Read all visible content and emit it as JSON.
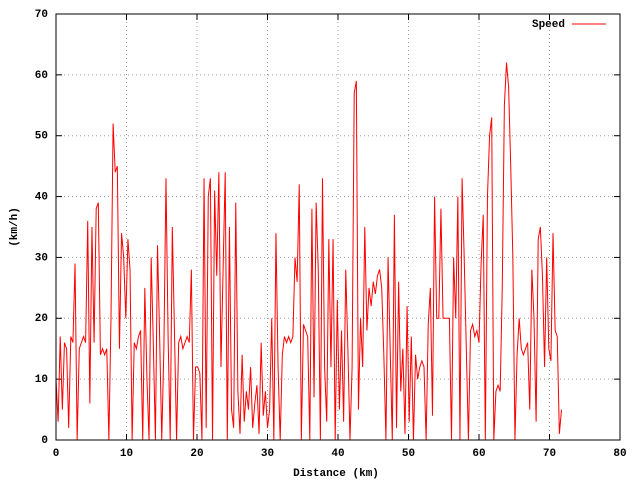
{
  "chart_data": {
    "type": "line",
    "xlabel": "Distance (km)",
    "ylabel": "(km/h)",
    "xlim": [
      0,
      80
    ],
    "ylim": [
      0,
      70
    ],
    "xticks": [
      0,
      10,
      20,
      30,
      40,
      50,
      60,
      70,
      80
    ],
    "yticks": [
      0,
      10,
      20,
      30,
      40,
      50,
      60,
      70
    ],
    "grid": true,
    "legend": "upper right",
    "x": [
      0,
      0.3,
      0.6,
      0.9,
      1.2,
      1.5,
      1.8,
      2.1,
      2.4,
      2.7,
      3,
      3.3,
      3.6,
      3.9,
      4.2,
      4.5,
      4.8,
      5.1,
      5.4,
      5.7,
      6,
      6.3,
      6.6,
      6.9,
      7.2,
      7.5,
      7.8,
      8.1,
      8.4,
      8.7,
      9,
      9.3,
      9.6,
      9.9,
      10.2,
      10.5,
      10.8,
      11.1,
      11.4,
      11.7,
      12,
      12.3,
      12.6,
      12.9,
      13.2,
      13.5,
      13.8,
      14.1,
      14.4,
      14.7,
      15,
      15.3,
      15.6,
      15.9,
      16.2,
      16.5,
      16.8,
      17.1,
      17.4,
      17.7,
      18,
      18.3,
      18.6,
      18.9,
      19.2,
      19.5,
      19.8,
      20.1,
      20.4,
      20.7,
      21,
      21.3,
      21.6,
      21.9,
      22.2,
      22.5,
      22.8,
      23.1,
      23.4,
      23.7,
      24,
      24.3,
      24.6,
      24.9,
      25.2,
      25.5,
      25.8,
      26.1,
      26.4,
      26.7,
      27,
      27.3,
      27.6,
      27.9,
      28.2,
      28.5,
      28.8,
      29.1,
      29.4,
      29.7,
      30,
      30.3,
      30.6,
      30.9,
      31.2,
      31.5,
      31.8,
      32.1,
      32.4,
      32.7,
      33,
      33.3,
      33.6,
      33.9,
      34.2,
      34.5,
      34.8,
      35.1,
      35.4,
      35.7,
      36,
      36.3,
      36.6,
      36.9,
      37.2,
      37.5,
      37.8,
      38.1,
      38.4,
      38.7,
      39,
      39.3,
      39.6,
      39.9,
      40.2,
      40.5,
      40.8,
      41.1,
      41.4,
      41.7,
      42,
      42.3,
      42.6,
      42.9,
      43.2,
      43.5,
      43.8,
      44.1,
      44.4,
      44.7,
      45,
      45.3,
      45.6,
      45.9,
      46.2,
      46.5,
      46.8,
      47.1,
      47.4,
      47.7,
      48,
      48.3,
      48.6,
      48.9,
      49.2,
      49.5,
      49.8,
      50.1,
      50.4,
      50.7,
      51,
      51.3,
      51.6,
      51.9,
      52.2,
      52.5,
      52.8,
      53.1,
      53.4,
      53.7,
      54,
      54.3,
      54.6,
      54.9,
      55.2,
      55.5,
      55.8,
      56.1,
      56.4,
      56.7,
      57,
      57.3,
      57.6,
      57.9,
      58.2,
      58.5,
      58.8,
      59.1,
      59.4,
      59.7,
      60,
      60.3,
      60.6,
      60.9,
      61.2,
      61.5,
      61.8,
      62.1,
      62.4,
      62.7,
      63,
      63.3,
      63.6,
      63.9,
      64.2,
      64.5,
      64.8,
      65.1,
      65.4,
      65.7,
      66,
      66.3,
      66.6,
      66.9,
      67.2,
      67.5,
      67.8,
      68.1,
      68.4,
      68.7,
      69,
      69.3,
      69.6,
      69.9,
      70.2,
      70.5,
      70.8,
      71.1,
      71.4,
      71.7
    ],
    "series": [
      {
        "name": "Speed",
        "color": "#ff0000",
        "values": [
          10,
          3,
          17,
          5,
          16,
          15,
          2,
          17,
          16,
          29,
          0,
          15,
          16,
          17,
          16,
          36,
          6,
          35,
          16,
          38,
          39,
          14,
          15,
          14,
          15,
          0,
          20,
          52,
          44,
          45,
          15,
          34,
          30,
          20,
          33,
          28,
          0,
          16,
          15,
          17,
          18,
          0,
          25,
          10,
          0,
          30,
          16,
          0,
          32,
          17,
          0,
          15,
          43,
          17,
          0,
          35,
          18,
          0,
          16,
          17,
          15,
          16,
          17,
          16,
          28,
          0,
          12,
          12,
          11,
          0,
          43,
          2,
          40,
          43,
          0,
          41,
          27,
          44,
          12,
          28,
          44,
          0,
          35,
          5,
          2,
          39,
          8,
          1,
          14,
          3,
          8,
          5,
          12,
          2,
          6,
          9,
          1,
          16,
          4,
          8,
          2,
          5,
          20,
          0,
          34,
          12,
          0,
          14,
          17,
          16,
          17,
          16,
          17,
          30,
          26,
          42,
          0,
          19,
          18,
          17,
          0,
          38,
          7,
          39,
          28,
          0,
          43,
          12,
          3,
          33,
          12,
          33,
          0,
          23,
          5,
          18,
          3,
          28,
          15,
          0,
          12,
          57,
          59,
          5,
          20,
          12,
          35,
          18,
          25,
          22,
          26,
          24,
          27,
          28,
          25,
          14,
          0,
          30,
          15,
          0,
          37,
          2,
          26,
          8,
          15,
          1,
          22,
          3,
          17,
          0,
          14,
          10,
          12,
          13,
          12,
          0,
          19,
          25,
          4,
          40,
          20,
          20,
          38,
          20,
          20,
          20,
          20,
          0,
          30,
          20,
          40,
          0,
          43,
          30,
          15,
          0,
          18,
          19,
          17,
          18,
          16,
          29,
          37,
          0,
          40,
          50,
          53,
          0,
          8,
          9,
          8,
          25,
          55,
          62,
          58,
          45,
          30,
          0,
          14,
          20,
          15,
          14,
          15,
          16,
          5,
          28,
          20,
          3,
          33,
          35,
          27,
          12,
          30,
          15,
          13,
          34,
          18,
          17,
          1,
          5
        ]
      }
    ]
  }
}
